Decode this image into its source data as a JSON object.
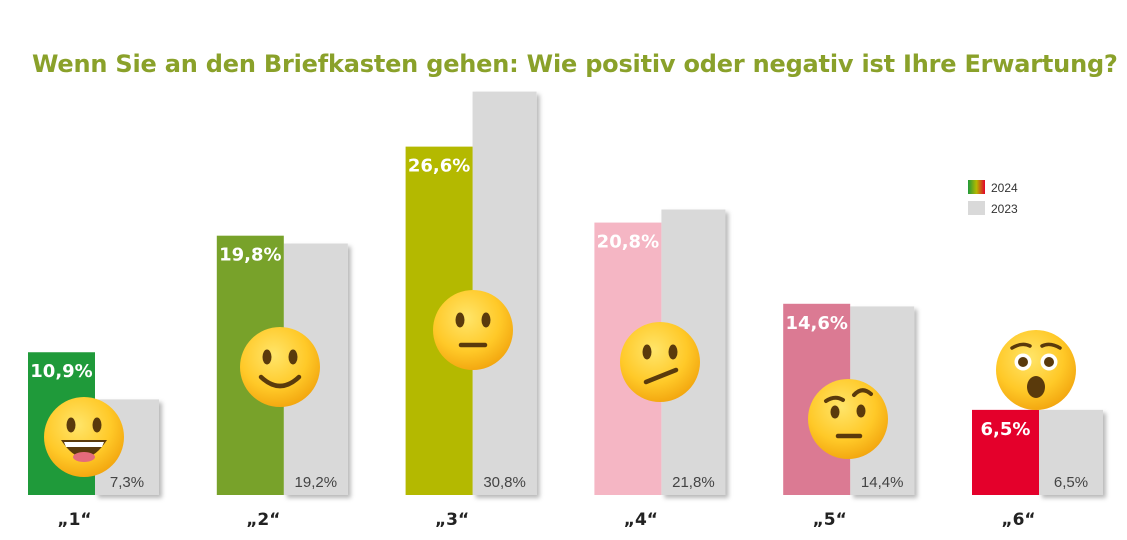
{
  "colors": {
    "title": "#8aa12a",
    "previous": "#d9d9d9",
    "bars": [
      "#1f9a3a",
      "#78a22a",
      "#b4b900",
      "#f5b6c4",
      "#db7a93",
      "#e4002b"
    ]
  },
  "chart_data": {
    "type": "bar",
    "title": "Wenn Sie an den Briefkasten gehen: Wie positiv oder negativ ist Ihre Erwartung?",
    "categories": [
      "„1“",
      "„2“",
      "„3“",
      "„4“",
      "„5“",
      "„6“"
    ],
    "series": [
      {
        "name": "2024",
        "values": [
          10.9,
          19.8,
          26.6,
          20.8,
          14.6,
          6.5
        ],
        "labels": [
          "10,9%",
          "19,8%",
          "26,6%",
          "20,8%",
          "14,6%",
          "6,5%"
        ]
      },
      {
        "name": "2023",
        "values": [
          7.3,
          19.2,
          30.8,
          21.8,
          14.4,
          6.5
        ],
        "labels": [
          "7,3%",
          "19,2%",
          "30,8%",
          "21,8%",
          "14,4%",
          "6,5%"
        ]
      }
    ],
    "emojis": [
      "grinning-face-icon",
      "slightly-smiling-face-icon",
      "neutral-face-icon",
      "confused-face-icon",
      "raised-eyebrow-face-icon",
      "astonished-face-icon"
    ],
    "ylim": [
      0,
      31
    ],
    "grid": false,
    "legend": "right"
  }
}
